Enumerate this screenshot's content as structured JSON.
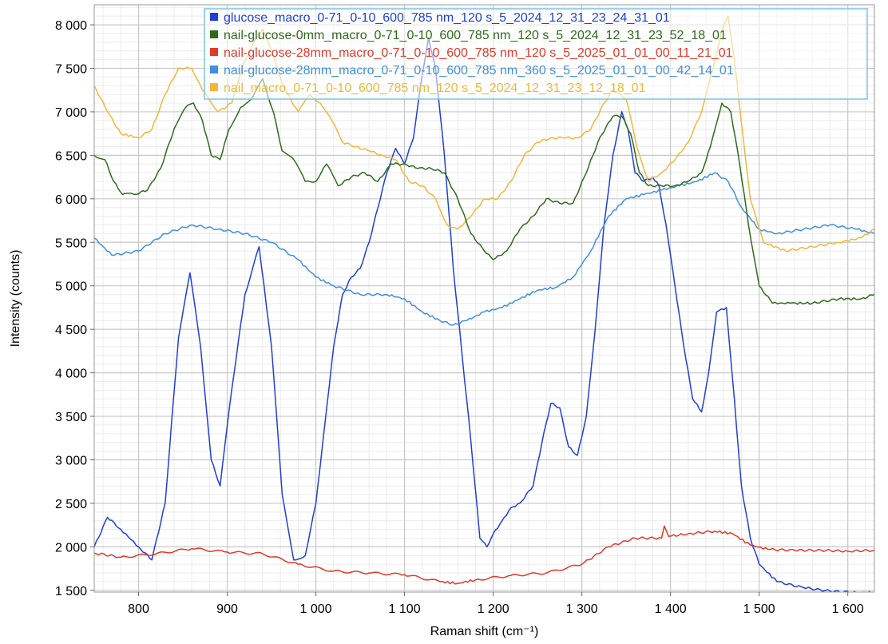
{
  "chart_data": {
    "type": "line",
    "xlabel": "Raman shift (cm⁻¹)",
    "ylabel": "Intensity (counts)",
    "xlim": [
      750,
      1630
    ],
    "ylim": [
      1480,
      8230
    ],
    "x_ticks": [
      800,
      900,
      1000,
      1100,
      1200,
      1300,
      1400,
      1500,
      1600
    ],
    "x_tick_labels": [
      "800",
      "900",
      "1 000",
      "1 100",
      "1 200",
      "1 300",
      "1 400",
      "1 500",
      "1 600"
    ],
    "y_ticks": [
      1500,
      2000,
      2500,
      3000,
      3500,
      4000,
      4500,
      5000,
      5500,
      6000,
      6500,
      7000,
      7500,
      8000
    ],
    "y_tick_labels": [
      "1 500",
      "2 000",
      "2 500",
      "3 000",
      "3 500",
      "4 000",
      "4 500",
      "5 000",
      "5 500",
      "6 000",
      "6 500",
      "7 000",
      "7 500",
      "8 000"
    ],
    "grid": true,
    "legend_position": "top-right",
    "series": [
      {
        "name": "glucose_macro_0-71_0-10_600_785 nm_120 s_5_2024_12_31_23_24_31_01",
        "color": "#1f3fd8",
        "x": [
          750,
          765,
          780,
          800,
          815,
          830,
          845,
          858,
          870,
          882,
          892,
          905,
          920,
          936,
          950,
          962,
          975,
          988,
          1000,
          1010,
          1020,
          1030,
          1040,
          1050,
          1060,
          1070,
          1080,
          1090,
          1100,
          1110,
          1118,
          1127,
          1135,
          1145,
          1155,
          1165,
          1175,
          1185,
          1193,
          1200,
          1210,
          1220,
          1230,
          1245,
          1255,
          1265,
          1275,
          1285,
          1295,
          1305,
          1315,
          1325,
          1335,
          1345,
          1352,
          1360,
          1370,
          1380,
          1387,
          1395,
          1405,
          1415,
          1425,
          1435,
          1443,
          1452,
          1463,
          1472,
          1480,
          1490,
          1500,
          1520,
          1550,
          1580,
          1610,
          1630
        ],
        "values": [
          2000,
          2340,
          2200,
          2000,
          1850,
          2500,
          4400,
          5150,
          4300,
          3000,
          2700,
          3800,
          4900,
          5450,
          4300,
          2600,
          1850,
          1900,
          2500,
          3400,
          4300,
          4900,
          5100,
          5200,
          5500,
          5900,
          6300,
          6580,
          6400,
          6700,
          7300,
          7850,
          7500,
          6500,
          5200,
          4200,
          3200,
          2100,
          2000,
          2150,
          2300,
          2450,
          2500,
          2700,
          3200,
          3650,
          3600,
          3150,
          3050,
          3500,
          4500,
          5700,
          6500,
          7000,
          6800,
          6300,
          6200,
          6250,
          6150,
          5700,
          5000,
          4300,
          3700,
          3550,
          4000,
          4700,
          4750,
          3700,
          2700,
          2100,
          1800,
          1600,
          1530,
          1490,
          1475,
          1475
        ]
      },
      {
        "name": "nail-glucose-0mm_macro_0-71_0-10_600_785 nm_120 s_5_2024_12_31_23_52_18_01",
        "color": "#2f6b1c",
        "x": [
          750,
          762,
          772,
          782,
          795,
          810,
          825,
          840,
          853,
          862,
          872,
          882,
          892,
          902,
          915,
          928,
          940,
          952,
          962,
          975,
          988,
          1000,
          1012,
          1025,
          1040,
          1055,
          1070,
          1085,
          1100,
          1115,
          1130,
          1145,
          1160,
          1175,
          1190,
          1200,
          1215,
          1230,
          1245,
          1260,
          1275,
          1290,
          1305,
          1320,
          1335,
          1345,
          1355,
          1365,
          1375,
          1390,
          1405,
          1420,
          1435,
          1445,
          1458,
          1468,
          1478,
          1488,
          1500,
          1515,
          1535,
          1560,
          1590,
          1615,
          1630
        ],
        "values": [
          6500,
          6450,
          6200,
          6050,
          6050,
          6100,
          6350,
          6800,
          7050,
          7100,
          6900,
          6500,
          6450,
          6800,
          7050,
          7150,
          7380,
          7000,
          6550,
          6450,
          6200,
          6200,
          6400,
          6150,
          6250,
          6300,
          6200,
          6400,
          6400,
          6350,
          6350,
          6300,
          6000,
          5600,
          5400,
          5300,
          5400,
          5650,
          5800,
          6000,
          5950,
          5950,
          6300,
          6700,
          6950,
          6950,
          6750,
          6300,
          6150,
          6150,
          6150,
          6200,
          6300,
          6600,
          7100,
          7000,
          6400,
          5700,
          5000,
          4800,
          4800,
          4800,
          4850,
          4850,
          4900
        ]
      },
      {
        "name": "nail-glucose-28mm_macro_0-71_0-10_600_785 nm_120 s_5_2025_01_01_00_11_21_01",
        "color": "#e03a2a",
        "x": [
          750,
          780,
          820,
          860,
          900,
          940,
          980,
          1020,
          1060,
          1100,
          1140,
          1160,
          1180,
          1220,
          1260,
          1300,
          1330,
          1360,
          1390,
          1393,
          1398,
          1420,
          1450,
          1470,
          1490,
          1510,
          1540,
          1570,
          1600,
          1630
        ],
        "values": [
          1930,
          1880,
          1920,
          1980,
          1940,
          1920,
          1800,
          1720,
          1700,
          1680,
          1600,
          1580,
          1620,
          1670,
          1700,
          1800,
          2000,
          2100,
          2100,
          2240,
          2120,
          2150,
          2180,
          2150,
          2020,
          1970,
          1960,
          1960,
          1950,
          1960
        ]
      },
      {
        "name": "nail-glucose-28mm_macro_0-71_0-10_600_785 nm_360 s_5_2025_01_01_00_42_14_01",
        "color": "#3f8fe3",
        "x": [
          750,
          770,
          800,
          830,
          860,
          890,
          920,
          950,
          980,
          1000,
          1020,
          1050,
          1080,
          1100,
          1120,
          1140,
          1155,
          1170,
          1190,
          1210,
          1230,
          1250,
          1270,
          1290,
          1310,
          1330,
          1350,
          1370,
          1390,
          1410,
          1430,
          1450,
          1465,
          1480,
          1500,
          1520,
          1550,
          1580,
          1610,
          1630
        ],
        "values": [
          5550,
          5350,
          5400,
          5600,
          5700,
          5650,
          5600,
          5500,
          5300,
          5100,
          5000,
          4900,
          4900,
          4850,
          4700,
          4600,
          4550,
          4600,
          4700,
          4750,
          4850,
          4950,
          4980,
          5100,
          5400,
          5800,
          6000,
          6050,
          6100,
          6150,
          6200,
          6300,
          6200,
          5900,
          5650,
          5600,
          5650,
          5700,
          5650,
          5600
        ]
      },
      {
        "name": "nail_macro_0-71_0-10_600_785 nm_120 s_5_2024_12_31_23_12_18_01",
        "color": "#f0b83a",
        "x": [
          750,
          765,
          780,
          800,
          815,
          830,
          845,
          860,
          872,
          890,
          905,
          918,
          930,
          940,
          952,
          965,
          980,
          993,
          1005,
          1018,
          1030,
          1045,
          1060,
          1075,
          1090,
          1105,
          1120,
          1135,
          1148,
          1160,
          1175,
          1190,
          1205,
          1220,
          1235,
          1250,
          1265,
          1280,
          1295,
          1310,
          1325,
          1335,
          1350,
          1362,
          1375,
          1390,
          1405,
          1420,
          1435,
          1448,
          1458,
          1465,
          1472,
          1482,
          1490,
          1505,
          1530,
          1560,
          1590,
          1615,
          1630
        ],
        "values": [
          7300,
          7000,
          6750,
          6700,
          6800,
          7200,
          7500,
          7500,
          7250,
          7000,
          7100,
          7550,
          7800,
          7950,
          7650,
          7250,
          7000,
          7200,
          7100,
          6900,
          6650,
          6600,
          6550,
          6500,
          6450,
          6200,
          6150,
          6000,
          5700,
          5650,
          5800,
          6000,
          6000,
          6200,
          6500,
          6650,
          6700,
          6700,
          6700,
          6800,
          7100,
          7250,
          7150,
          6600,
          6200,
          6300,
          6450,
          6650,
          7000,
          7500,
          7950,
          8100,
          7600,
          6700,
          6000,
          5500,
          5400,
          5450,
          5500,
          5550,
          5650
        ]
      }
    ]
  }
}
